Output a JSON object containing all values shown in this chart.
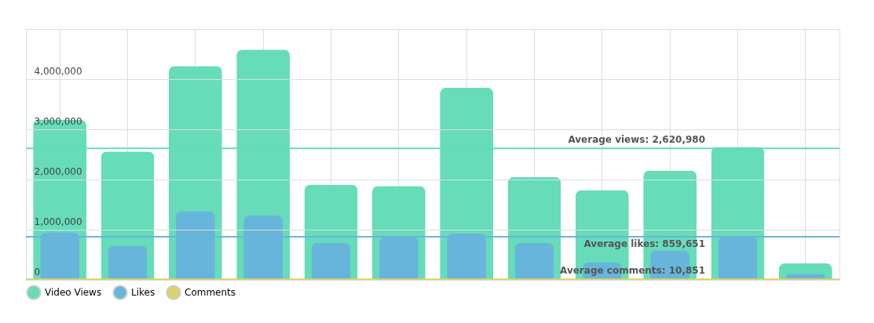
{
  "chart_data": {
    "type": "bar",
    "categories": [
      null,
      null,
      null,
      null,
      null,
      null,
      null,
      null,
      null,
      null,
      null,
      null
    ],
    "series": [
      {
        "name": "Video Views",
        "color": "#66dcb9",
        "values": [
          3190000,
          2560000,
          4260000,
          4590000,
          1900000,
          1870000,
          3830000,
          2050000,
          1790000,
          2180000,
          2650000,
          330000
        ]
      },
      {
        "name": "Likes",
        "color": "#67b5db",
        "values": [
          950000,
          680000,
          1370000,
          1280000,
          740000,
          860000,
          920000,
          740000,
          350000,
          590000,
          860000,
          120000
        ]
      },
      {
        "name": "Comments",
        "color": "#dcd26a",
        "values": [
          10000,
          10000,
          10000,
          10000,
          10000,
          10000,
          10000,
          10000,
          10000,
          10000,
          10000,
          10000
        ]
      }
    ],
    "ylim": [
      0,
      5000000
    ],
    "yticks": [
      0,
      {
        "value": 1000000,
        "label": "1,000,000"
      },
      {
        "value": 2000000,
        "label": "2,000,000"
      },
      {
        "value": 3000000,
        "label": "3,000,000"
      },
      {
        "value": 4000000,
        "label": "4,000,000"
      },
      {
        "value": 5000000,
        "label": null
      }
    ],
    "ref_lines": [
      {
        "axis": "y",
        "value": 2620980,
        "label": "Average views: 2,620,980",
        "color": "#66dcb9"
      },
      {
        "axis": "y",
        "value": 859651,
        "label": "Average likes: 859,651",
        "color": "#67b5db"
      },
      {
        "axis": "y",
        "value": 10851,
        "label": "Average comments: 10,851",
        "color": "#dcd26a"
      }
    ],
    "grid": true,
    "legend": "bottom",
    "tick_labels": "y"
  }
}
